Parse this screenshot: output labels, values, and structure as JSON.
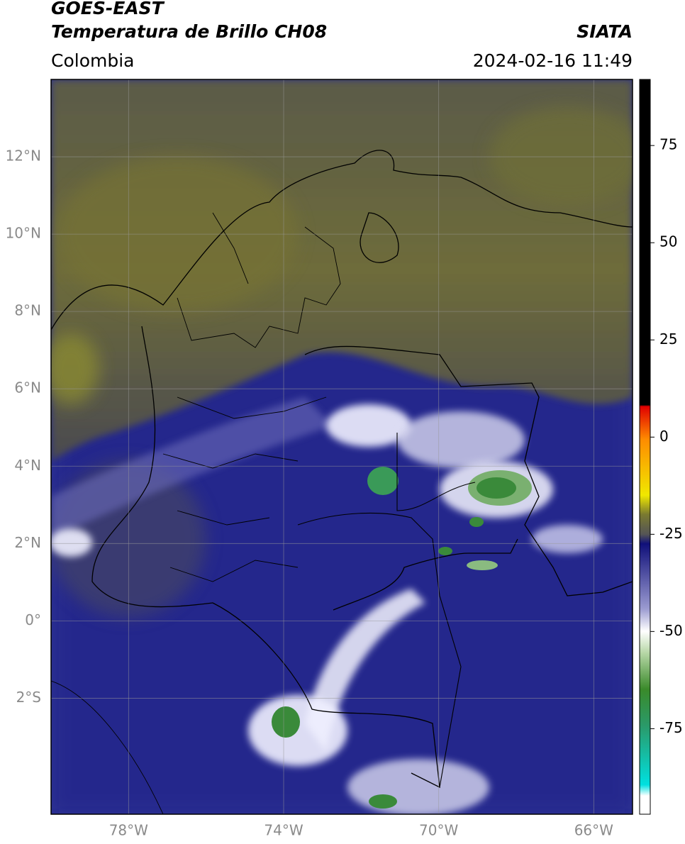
{
  "header": {
    "title": "GOES-EAST",
    "subtitle": "Temperatura de Brillo CH08",
    "source": "SIATA",
    "region": "Colombia",
    "timestamp": "2024-02-16 11:49"
  },
  "map": {
    "xlim": [
      -80,
      -65
    ],
    "ylim": [
      -5,
      14
    ],
    "xticks": [
      {
        "value": -78,
        "label": "78°W"
      },
      {
        "value": -74,
        "label": "74°W"
      },
      {
        "value": -70,
        "label": "70°W"
      },
      {
        "value": -66,
        "label": "66°W"
      }
    ],
    "yticks": [
      {
        "value": 12,
        "label": "12°N"
      },
      {
        "value": 10,
        "label": "10°N"
      },
      {
        "value": 8,
        "label": "8°N"
      },
      {
        "value": 6,
        "label": "6°N"
      },
      {
        "value": 4,
        "label": "4°N"
      },
      {
        "value": 2,
        "label": "2°N"
      },
      {
        "value": 0,
        "label": "0°"
      },
      {
        "value": -2,
        "label": "2°S"
      }
    ],
    "grid": true
  },
  "colorbar": {
    "lim": [
      -97,
      92
    ],
    "ticks": [
      75,
      50,
      25,
      0,
      -25,
      -50,
      -75
    ]
  }
}
